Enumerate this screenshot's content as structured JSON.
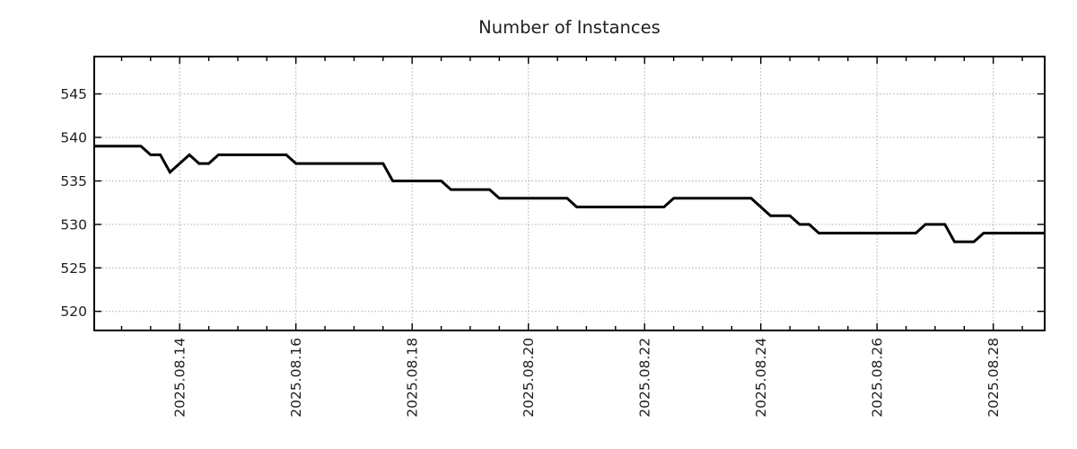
{
  "chart_data": {
    "type": "line",
    "title": "Number of Instances",
    "grid": {
      "shown": true,
      "color": "#a6a6a6",
      "style": "dotted"
    },
    "legend": {
      "shown": false
    },
    "x_axis": {
      "unit": "days since 2025-08-14 00:00",
      "range": [
        -1.4703,
        14.885
      ],
      "minor_tick_interval_days": 0.5,
      "major_ticks": [
        {
          "t": 0,
          "label": "2025.08.14"
        },
        {
          "t": 2,
          "label": "2025.08.16"
        },
        {
          "t": 4,
          "label": "2025.08.18"
        },
        {
          "t": 6,
          "label": "2025.08.20"
        },
        {
          "t": 8,
          "label": "2025.08.22"
        },
        {
          "t": 10,
          "label": "2025.08.24"
        },
        {
          "t": 12,
          "label": "2025.08.26"
        },
        {
          "t": 14,
          "label": "2025.08.28"
        }
      ]
    },
    "y_axis": {
      "range": [
        517.8,
        549.3
      ],
      "ticks": [
        520,
        525,
        530,
        535,
        540,
        545
      ]
    },
    "series": [
      {
        "name": "instances",
        "color": "#000000",
        "line_width": 3,
        "points": [
          [
            -1.4703,
            539
          ],
          [
            -0.667,
            539
          ],
          [
            -0.5,
            538
          ],
          [
            -0.333,
            538
          ],
          [
            -0.167,
            536
          ],
          [
            0.167,
            538
          ],
          [
            0.333,
            537
          ],
          [
            0.5,
            537
          ],
          [
            0.667,
            538
          ],
          [
            1.833,
            538
          ],
          [
            2.0,
            537
          ],
          [
            3.5,
            537
          ],
          [
            3.667,
            535
          ],
          [
            4.5,
            535
          ],
          [
            4.667,
            534
          ],
          [
            5.333,
            534
          ],
          [
            5.5,
            533
          ],
          [
            6.667,
            533
          ],
          [
            6.833,
            532
          ],
          [
            8.333,
            532
          ],
          [
            8.5,
            533
          ],
          [
            9.833,
            533
          ],
          [
            10.167,
            531
          ],
          [
            10.5,
            531
          ],
          [
            10.667,
            530
          ],
          [
            10.833,
            530
          ],
          [
            11.0,
            529
          ],
          [
            12.667,
            529
          ],
          [
            12.833,
            530
          ],
          [
            13.167,
            530
          ],
          [
            13.333,
            528
          ],
          [
            13.667,
            528
          ],
          [
            13.833,
            529
          ],
          [
            14.885,
            529
          ]
        ]
      }
    ]
  }
}
